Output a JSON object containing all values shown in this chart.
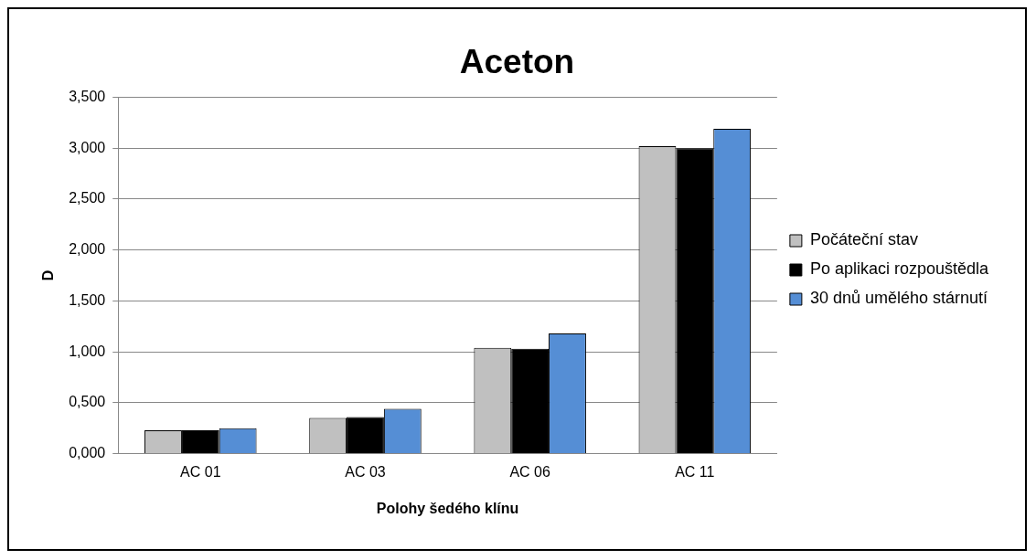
{
  "chart_data": {
    "type": "bar",
    "title": "Aceton",
    "xlabel": "Polohy šedého klínu",
    "ylabel": "D",
    "categories": [
      "AC 01",
      "AC 03",
      "AC 06",
      "AC 11"
    ],
    "series": [
      {
        "name": "Počáteční stav",
        "color": "#c0c0c0",
        "values": [
          0.23,
          0.35,
          1.04,
          3.02
        ]
      },
      {
        "name": "Po aplikaci rozpouštědla",
        "color": "#000000",
        "values": [
          0.23,
          0.36,
          1.03,
          3.0
        ]
      },
      {
        "name": "30 dnů umělého stárnutí",
        "color": "#558ed5",
        "values": [
          0.25,
          0.44,
          1.18,
          3.19
        ]
      }
    ],
    "ylim": [
      0,
      3.5
    ],
    "yticks": [
      {
        "value": 0,
        "label": "0,000"
      },
      {
        "value": 0.5,
        "label": "0,500"
      },
      {
        "value": 1,
        "label": "1,000"
      },
      {
        "value": 1.5,
        "label": "1,500"
      },
      {
        "value": 2,
        "label": "2,000"
      },
      {
        "value": 2.5,
        "label": "2,500"
      },
      {
        "value": 3,
        "label": "3,000"
      },
      {
        "value": 3.5,
        "label": "3,500"
      }
    ],
    "grid": "y",
    "legend": "right"
  }
}
